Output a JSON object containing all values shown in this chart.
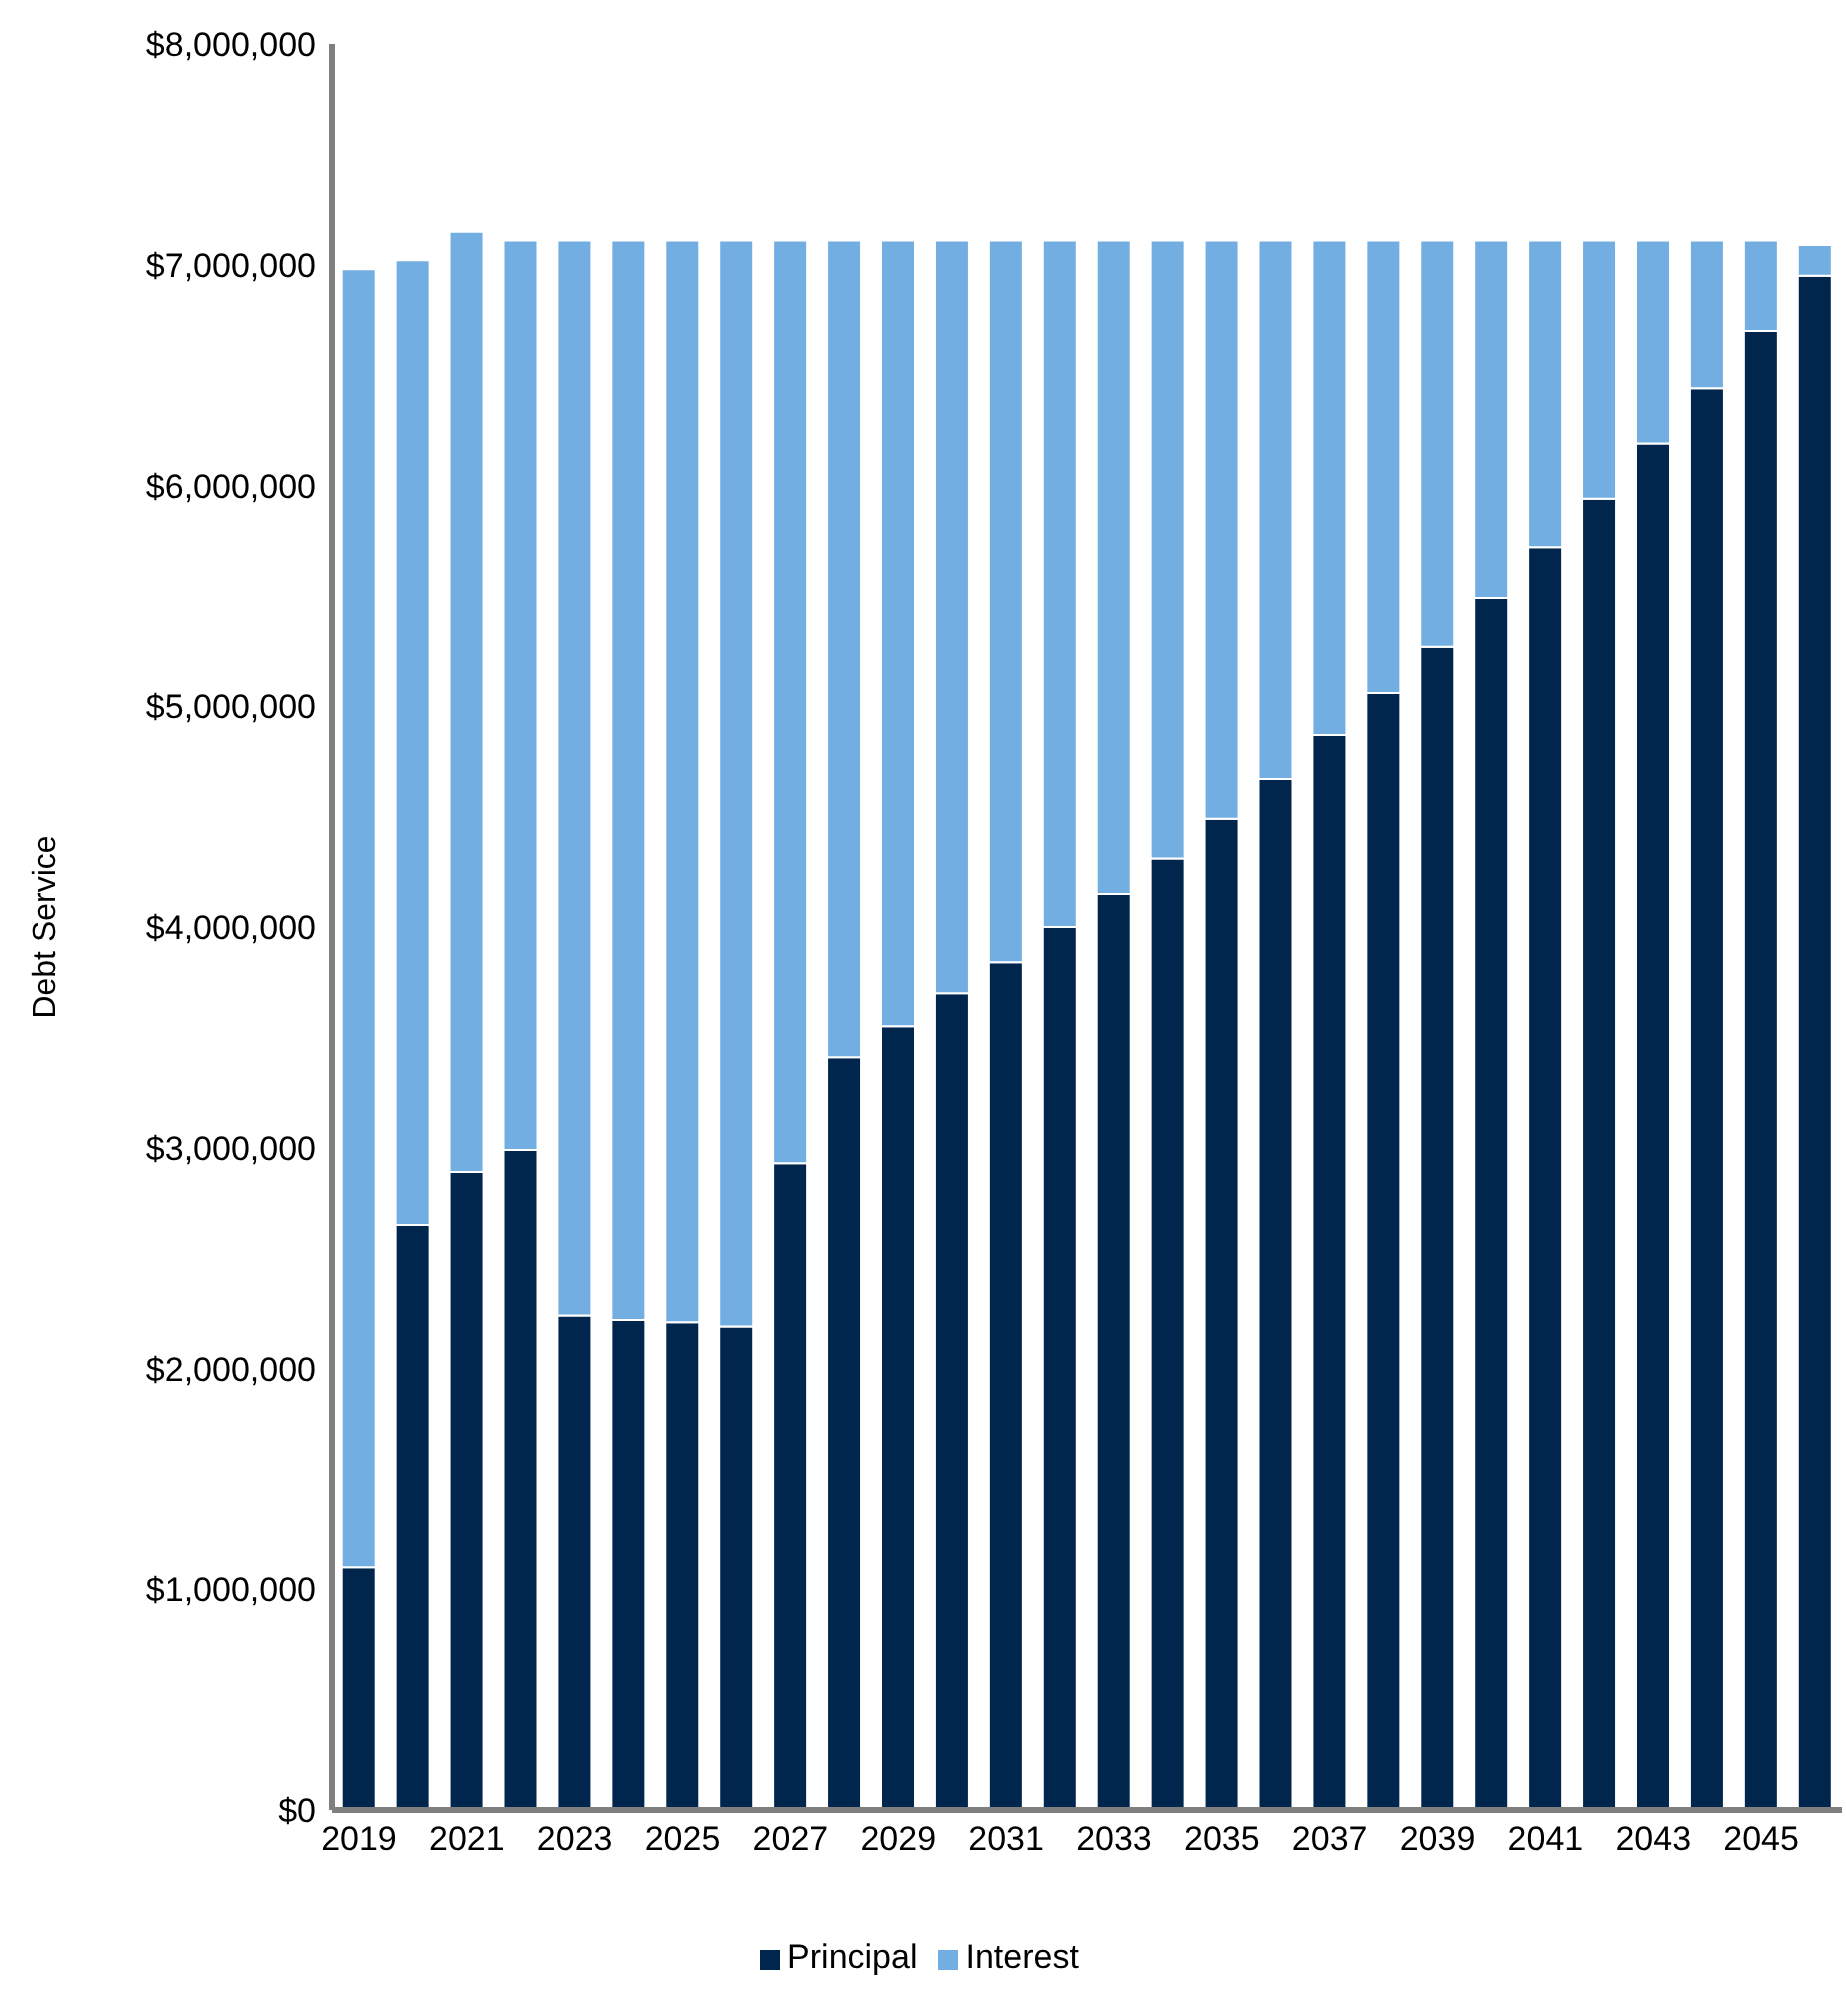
{
  "chart_data": {
    "type": "bar",
    "stacked": true,
    "ylabel": "Debt Service",
    "categories": [
      "2019",
      null,
      "2021",
      null,
      "2023",
      null,
      "2025",
      null,
      "2027",
      null,
      "2029",
      null,
      "2031",
      null,
      "2033",
      null,
      "2035",
      null,
      "2037",
      null,
      "2039",
      null,
      "2041",
      null,
      "2043",
      null,
      "2045",
      null
    ],
    "series": [
      {
        "name": "Principal",
        "color": "#00264d",
        "values": [
          1100000,
          2650000,
          2890000,
          2990000,
          2240000,
          2220000,
          2210000,
          2190000,
          2930000,
          3410000,
          3550000,
          3700000,
          3840000,
          4000000,
          4150000,
          4310000,
          4490000,
          4670000,
          4870000,
          5060000,
          5270000,
          5490000,
          5720000,
          5940000,
          6190000,
          6440000,
          6700000,
          6950000
        ]
      },
      {
        "name": "Interest",
        "color": "#72aee2",
        "values": [
          5880000,
          4370000,
          4260000,
          4120000,
          4870000,
          4890000,
          4900000,
          4920000,
          4180000,
          3700000,
          3560000,
          3410000,
          3270000,
          3110000,
          2960000,
          2800000,
          2620000,
          2440000,
          2240000,
          2050000,
          1840000,
          1620000,
          1390000,
          1170000,
          920000,
          670000,
          410000,
          140000
        ]
      }
    ],
    "ylim": [
      0,
      8000000
    ],
    "yticks": [
      {
        "value": 0,
        "label": "$0"
      },
      {
        "value": 1000000,
        "label": "$1,000,000"
      },
      {
        "value": 2000000,
        "label": "$2,000,000"
      },
      {
        "value": 3000000,
        "label": "$3,000,000"
      },
      {
        "value": 4000000,
        "label": "$4,000,000"
      },
      {
        "value": 5000000,
        "label": "$5,000,000"
      },
      {
        "value": 6000000,
        "label": "$6,000,000"
      },
      {
        "value": 7000000,
        "label": "$7,000,000"
      },
      {
        "value": 8000000,
        "label": "$8,000,000"
      }
    ],
    "legend": "bottom",
    "grid": false
  }
}
